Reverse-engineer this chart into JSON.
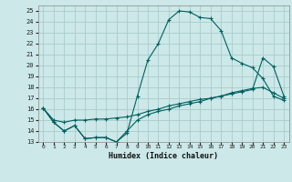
{
  "xlabel": "Humidex (Indice chaleur)",
  "xlim": [
    -0.5,
    23.5
  ],
  "ylim": [
    13,
    25.5
  ],
  "yticks": [
    13,
    14,
    15,
    16,
    17,
    18,
    19,
    20,
    21,
    22,
    23,
    24,
    25
  ],
  "xticks": [
    0,
    1,
    2,
    3,
    4,
    5,
    6,
    7,
    8,
    9,
    10,
    11,
    12,
    13,
    14,
    15,
    16,
    17,
    18,
    19,
    20,
    21,
    22,
    23
  ],
  "bg_color": "#cce8e8",
  "line_color": "#006060",
  "grid_color": "#b8d8d8",
  "line1_x": [
    0,
    1,
    2,
    3,
    4,
    5,
    6,
    7,
    8,
    9,
    10,
    11,
    12,
    13,
    14,
    15,
    16,
    17,
    18,
    19,
    20,
    21,
    22,
    23
  ],
  "line1_y": [
    16.1,
    14.8,
    14.0,
    14.5,
    13.3,
    13.4,
    13.4,
    13.0,
    13.8,
    17.2,
    20.5,
    22.0,
    24.2,
    25.0,
    24.9,
    24.4,
    24.3,
    23.2,
    20.7,
    20.2,
    19.8,
    18.8,
    17.2,
    16.8
  ],
  "line2_x": [
    0,
    1,
    2,
    3,
    4,
    5,
    6,
    7,
    8,
    9,
    10,
    11,
    12,
    13,
    14,
    15,
    16,
    17,
    18,
    19,
    20,
    21,
    22,
    23
  ],
  "line2_y": [
    16.1,
    14.8,
    14.0,
    14.5,
    13.3,
    13.4,
    13.4,
    13.0,
    14.0,
    15.0,
    15.5,
    15.8,
    16.0,
    16.3,
    16.5,
    16.7,
    17.0,
    17.2,
    17.5,
    17.7,
    17.9,
    18.0,
    17.5,
    17.0
  ],
  "line3_x": [
    0,
    1,
    2,
    3,
    4,
    5,
    6,
    7,
    8,
    9,
    10,
    11,
    12,
    13,
    14,
    15,
    16,
    17,
    18,
    19,
    20,
    21,
    22,
    23
  ],
  "line3_y": [
    16.1,
    15.0,
    14.8,
    15.0,
    15.0,
    15.1,
    15.1,
    15.2,
    15.3,
    15.5,
    15.8,
    16.0,
    16.3,
    16.5,
    16.7,
    16.9,
    17.0,
    17.2,
    17.4,
    17.6,
    17.8,
    20.7,
    19.9,
    17.2
  ]
}
